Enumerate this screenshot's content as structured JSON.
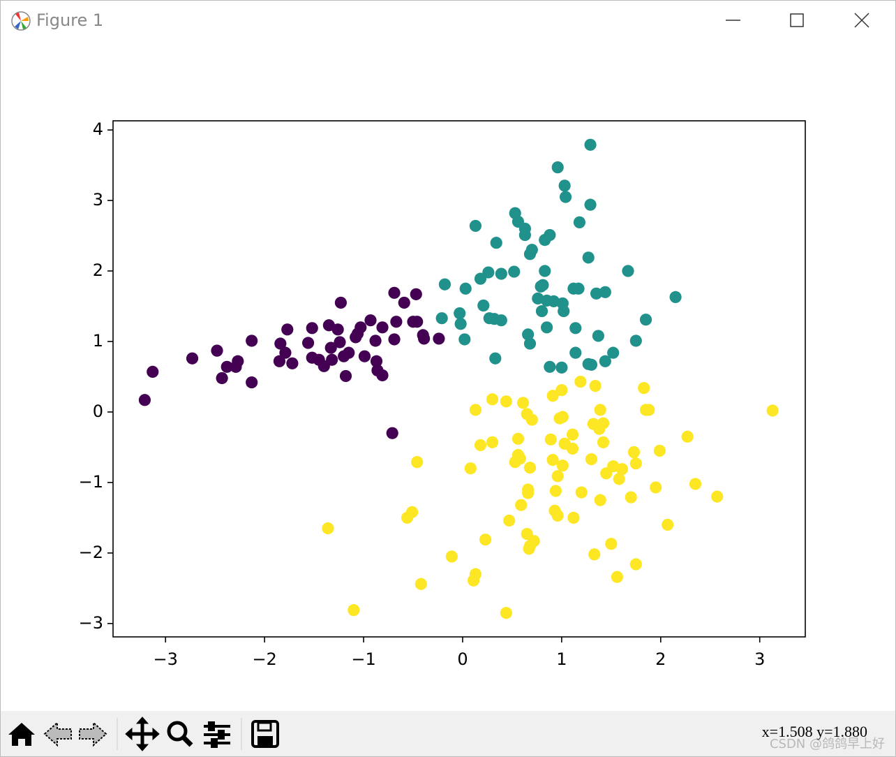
{
  "window": {
    "title": "Figure 1"
  },
  "chart_data": {
    "type": "scatter",
    "xlim": [
      -3.53,
      3.46
    ],
    "ylim": [
      -3.19,
      4.13
    ],
    "xticks": [
      {
        "value": -3,
        "label": "−3"
      },
      {
        "value": -2,
        "label": "−2"
      },
      {
        "value": -1,
        "label": "−1"
      },
      0,
      1,
      2,
      3
    ],
    "yticks": [
      {
        "value": -3,
        "label": "−3"
      },
      {
        "value": -2,
        "label": "−2"
      },
      {
        "value": -1,
        "label": "−1"
      },
      0,
      1,
      2,
      3,
      4
    ],
    "grid": false,
    "series": [
      {
        "color": "#440154",
        "x": [
          -3.21,
          -3.13,
          -2.73,
          -2.48,
          -2.43,
          -2.38,
          -2.27,
          -2.29,
          -2.13,
          -2.13,
          -1.84,
          -1.85,
          -1.79,
          -1.77,
          -1.72,
          -1.56,
          -1.52,
          -1.52,
          -1.45,
          -1.4,
          -1.35,
          -1.33,
          -1.32,
          -1.26,
          -1.24,
          -1.23,
          -1.2,
          -1.18,
          -1.15,
          -1.08,
          -1.06,
          -1.03,
          -0.99,
          -0.93,
          -0.88,
          -0.87,
          -0.86,
          -0.81,
          -0.81,
          -0.69,
          -0.69,
          -0.67,
          -0.59,
          -0.5,
          -0.47,
          -0.46,
          -0.4,
          -0.39,
          -0.24,
          -0.71
        ],
        "values": [
          0.17,
          0.57,
          0.76,
          0.87,
          0.48,
          0.64,
          0.72,
          0.64,
          1.01,
          0.42,
          0.97,
          0.72,
          0.84,
          1.17,
          0.69,
          0.98,
          1.19,
          0.77,
          0.74,
          0.65,
          1.23,
          0.91,
          0.74,
          1.17,
          0.99,
          1.55,
          0.79,
          0.51,
          0.84,
          1.06,
          1.11,
          1.2,
          0.79,
          1.3,
          1.01,
          0.72,
          0.59,
          0.52,
          1.2,
          1.69,
          1.03,
          1.28,
          1.55,
          1.28,
          1.67,
          1.28,
          1.09,
          1.04,
          1.04,
          -0.3
        ]
      },
      {
        "color": "#21918c",
        "x": [
          1.29,
          0.96,
          1.03,
          1.04,
          1.29,
          0.53,
          0.56,
          0.63,
          0.63,
          0.13,
          1.18,
          0.88,
          0.83,
          0.34,
          0.7,
          0.68,
          1.27,
          0.26,
          0.39,
          0.52,
          0.83,
          1.67,
          0.18,
          -0.18,
          0.03,
          0.81,
          0.79,
          1.12,
          1.17,
          1.35,
          1.44,
          2.15,
          0.76,
          0.85,
          0.92,
          1.01,
          0.21,
          0.8,
          1.02,
          -0.03,
          -0.21,
          0.27,
          0.32,
          0.39,
          1.85,
          -0.02,
          0.85,
          1.14,
          0.66,
          1.37,
          0.02,
          1.75,
          0.68,
          1.14,
          1.52,
          0.33,
          1.44,
          1.27,
          1.3,
          0.88,
          1.0
        ],
        "values": [
          3.79,
          3.47,
          3.21,
          3.05,
          2.94,
          2.82,
          2.7,
          2.6,
          2.51,
          2.64,
          2.69,
          2.51,
          2.44,
          2.4,
          2.3,
          2.24,
          2.19,
          1.98,
          1.96,
          1.99,
          2.0,
          2.0,
          1.89,
          1.81,
          1.75,
          1.8,
          1.78,
          1.75,
          1.75,
          1.68,
          1.7,
          1.63,
          1.61,
          1.58,
          1.57,
          1.54,
          1.51,
          1.43,
          1.43,
          1.4,
          1.33,
          1.33,
          1.32,
          1.3,
          1.31,
          1.25,
          1.2,
          1.19,
          1.1,
          1.08,
          1.03,
          1.01,
          0.97,
          0.84,
          0.84,
          0.76,
          0.72,
          0.68,
          0.67,
          0.64,
          0.63
        ]
      },
      {
        "color": "#fde725",
        "x": [
          1.19,
          1.34,
          1.83,
          1.0,
          0.91,
          0.3,
          0.44,
          0.61,
          0.13,
          1.39,
          1.85,
          1.88,
          3.13,
          0.65,
          1.01,
          0.98,
          0.7,
          1.32,
          1.42,
          1.38,
          1.11,
          0.56,
          0.89,
          2.27,
          1.03,
          0.3,
          0.18,
          1.42,
          1.11,
          1.99,
          1.73,
          0.56,
          0.58,
          -0.46,
          0.53,
          0.91,
          1.3,
          1.01,
          1.52,
          0.68,
          0.08,
          1.61,
          1.75,
          1.45,
          0.96,
          1.58,
          2.35,
          1.95,
          0.66,
          0.94,
          0.66,
          1.2,
          2.57,
          1.7,
          1.39,
          0.59,
          0.93,
          -0.51,
          -0.56,
          0.96,
          1.12,
          0.47,
          2.07,
          -1.36,
          0.65,
          0.23,
          0.72,
          0.68,
          1.5,
          0.67,
          1.33,
          -0.11,
          1.75,
          0.13,
          0.11,
          1.56,
          -0.42,
          -1.1,
          0.44
        ],
        "values": [
          0.43,
          0.37,
          0.34,
          0.31,
          0.23,
          0.18,
          0.15,
          0.13,
          0.03,
          0.03,
          0.03,
          0.03,
          0.02,
          -0.03,
          -0.07,
          -0.09,
          -0.11,
          -0.17,
          -0.16,
          -0.24,
          -0.32,
          -0.38,
          -0.39,
          -0.35,
          -0.45,
          -0.43,
          -0.47,
          -0.43,
          -0.52,
          -0.55,
          -0.57,
          -0.61,
          -0.66,
          -0.71,
          -0.71,
          -0.68,
          -0.67,
          -0.76,
          -0.77,
          -0.79,
          -0.8,
          -0.81,
          -0.73,
          -0.87,
          -0.91,
          -0.95,
          -1.02,
          -1.07,
          -1.1,
          -1.12,
          -1.15,
          -1.14,
          -1.2,
          -1.21,
          -1.25,
          -1.32,
          -1.4,
          -1.42,
          -1.5,
          -1.47,
          -1.5,
          -1.54,
          -1.6,
          -1.65,
          -1.73,
          -1.81,
          -1.83,
          -1.9,
          -1.87,
          -1.94,
          -2.02,
          -2.05,
          -2.16,
          -2.3,
          -2.39,
          -2.34,
          -2.44,
          -2.81,
          -2.85
        ]
      }
    ]
  },
  "toolbar": {
    "status": "x=1.508  y=1.880"
  },
  "watermark": "CSDN @鸽鸽早上好"
}
